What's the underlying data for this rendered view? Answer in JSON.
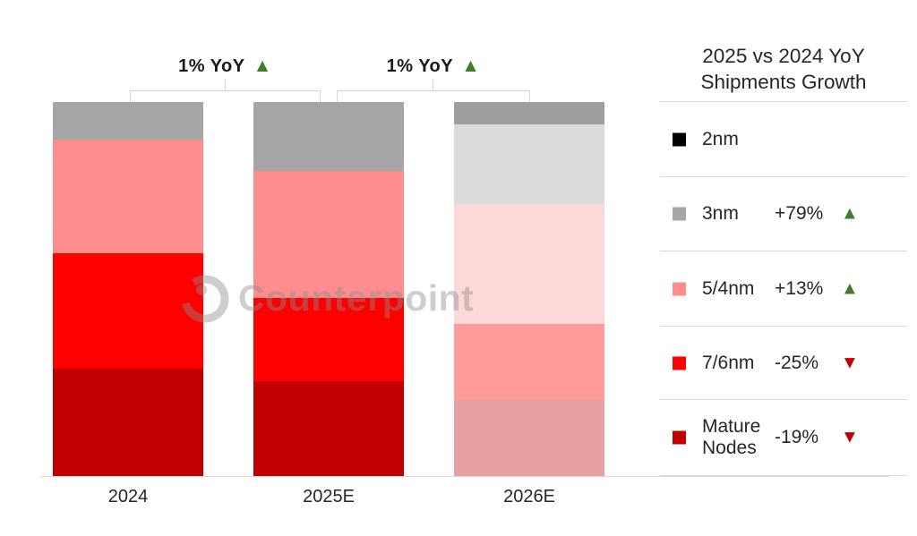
{
  "watermark": {
    "text": "Counterpoint",
    "logo_icon": "counterpoint-ring-logo"
  },
  "annotations": [
    {
      "text": "1% YoY",
      "symbol": "▲",
      "direction": "up"
    },
    {
      "text": "1% YoY",
      "symbol": "▲",
      "direction": "up"
    }
  ],
  "legend": {
    "title": "2025 vs 2024 YoY Shipments Growth",
    "up_color": "#3e7e28",
    "down_color": "#c00000",
    "items": [
      {
        "label": "2nm",
        "swatch": "#000000",
        "change": "",
        "direction": ""
      },
      {
        "label": "3nm",
        "swatch": "#a6a6a6",
        "change": "+79%",
        "direction": "up"
      },
      {
        "label": "5/4nm",
        "swatch": "#fe8d8e",
        "change": "+13%",
        "direction": "up"
      },
      {
        "label": "7/6nm",
        "swatch": "#fe0000",
        "change": "-25%",
        "direction": "down"
      },
      {
        "label": "Mature Nodes",
        "swatch": "#c00000",
        "change": "-19%",
        "direction": "down"
      }
    ]
  },
  "chart_data": {
    "type": "bar",
    "subtype": "stacked-percent",
    "title": "",
    "xlabel": "",
    "ylabel": "",
    "categories": [
      "2024",
      "2025E",
      "2026E"
    ],
    "faded_columns": [
      2
    ],
    "series": [
      {
        "name": "Mature Nodes",
        "color": "#c00000",
        "faded_color": "#e89fa2",
        "values_pct": [
          28.7,
          25.4,
          20.3
        ]
      },
      {
        "name": "7/6nm",
        "color": "#fe0000",
        "faded_color": "#fe9b9b",
        "values_pct": [
          30.9,
          22.2,
          20.3
        ]
      },
      {
        "name": "5/4nm",
        "color": "#fe8d8e",
        "faded_color": "#fdd8d8",
        "values_pct": [
          30.4,
          34.0,
          32.1
        ]
      },
      {
        "name": "3nm",
        "color": "#a6a6a6",
        "faded_color": "#dcdcdc",
        "values_pct": [
          10.0,
          18.4,
          21.3
        ]
      },
      {
        "name": "2nm",
        "color": "#000000",
        "faded_color": "#9e9e9e",
        "values_pct": [
          0,
          0,
          6.0
        ]
      }
    ],
    "annotations": [
      "1% YoY up between 2024 and 2025E",
      "1% YoY up between 2025E and 2026E"
    ],
    "legend_entries": [
      "2nm",
      "3nm +79% up",
      "5/4nm +13% up",
      "7/6nm -25% down",
      "Mature Nodes -19% down"
    ],
    "grid": false,
    "legend_position": "right"
  }
}
